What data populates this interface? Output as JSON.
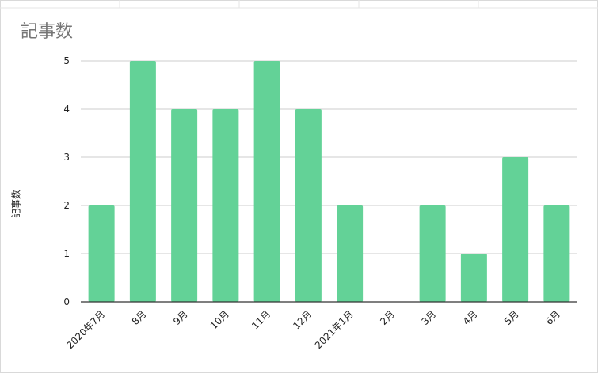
{
  "chart_data": {
    "type": "bar",
    "title": "記事数",
    "xlabel": "",
    "ylabel": "記事数",
    "categories": [
      "2020年7月",
      "8月",
      "9月",
      "10月",
      "11月",
      "12月",
      "2021年1月",
      "2月",
      "3月",
      "4月",
      "5月",
      "6月"
    ],
    "values": [
      2,
      5,
      4,
      4,
      5,
      4,
      2,
      0,
      2,
      1,
      3,
      2
    ],
    "ylim": [
      0,
      5
    ],
    "yticks": [
      0,
      1,
      2,
      3,
      4,
      5
    ],
    "grid": true,
    "legend": "none",
    "colors": {
      "bar": "#63d297",
      "grid": "#cccccc",
      "axis": "#333333"
    }
  }
}
